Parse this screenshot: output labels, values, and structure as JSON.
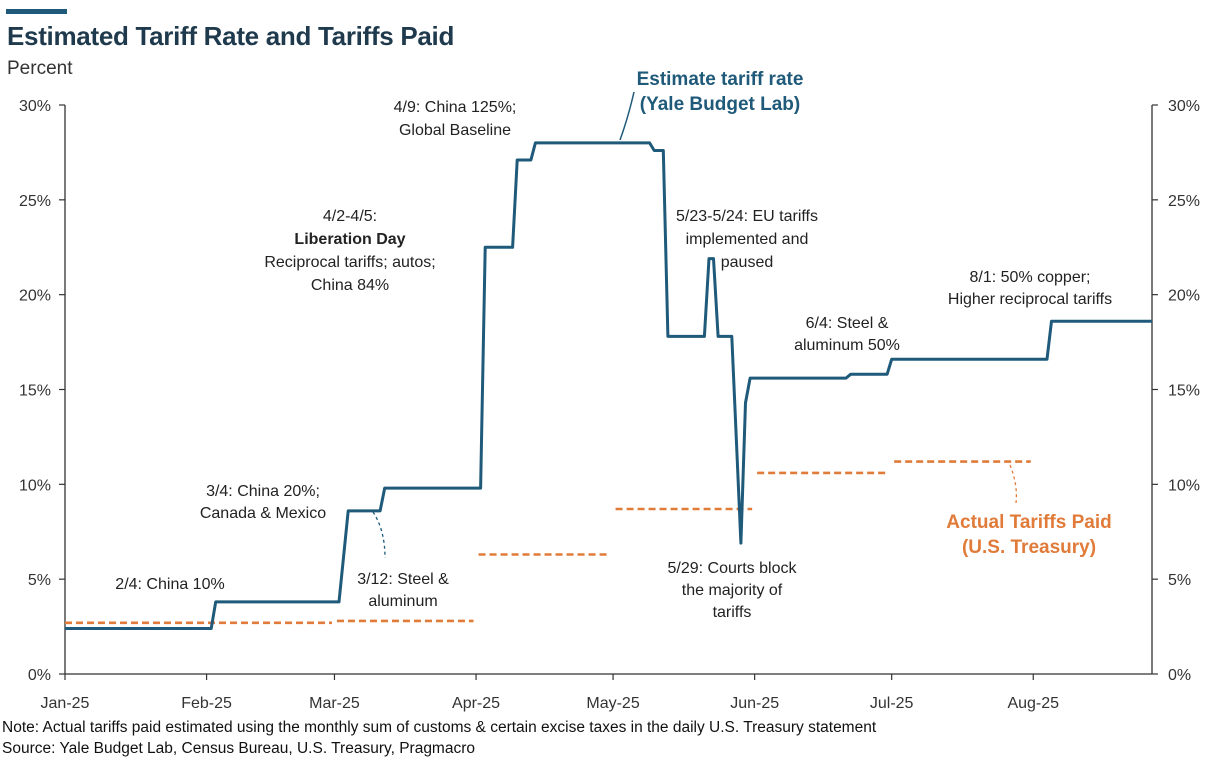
{
  "header": {
    "title": "Estimated Tariff Rate and Tariffs Paid",
    "subtitle": "Percent"
  },
  "footer": {
    "note": "Note: Actual tariffs paid estimated using the monthly sum of customs & certain excise taxes in the daily U.S. Treasury statement",
    "source": "Source: Yale Budget Lab, Census Bureau, U.S. Treasury, Pragmacro"
  },
  "colors": {
    "estimate": "#1f5a7a",
    "actual": "#e07b39",
    "axis": "#333333"
  },
  "chart_data": {
    "type": "line",
    "title": "Estimated Tariff Rate and Tariffs Paid",
    "ylabel": "Percent",
    "ylim": [
      0,
      30
    ],
    "xlim": [
      0,
      238
    ],
    "y_ticks": [
      0,
      5,
      10,
      15,
      20,
      25,
      30
    ],
    "y_tick_labels": [
      "0%",
      "5%",
      "10%",
      "15%",
      "20%",
      "25%",
      "30%"
    ],
    "x_ticks": [
      {
        "day": 0,
        "label": "Jan-25"
      },
      {
        "day": 31,
        "label": "Feb-25"
      },
      {
        "day": 59,
        "label": "Mar-25"
      },
      {
        "day": 90,
        "label": "Apr-25"
      },
      {
        "day": 120,
        "label": "May-25"
      },
      {
        "day": 151,
        "label": "Jun-25"
      },
      {
        "day": 181,
        "label": "Jul-25"
      },
      {
        "day": 212,
        "label": "Aug-25"
      }
    ],
    "series": [
      {
        "name": "Estimate tariff rate (Yale Budget Lab)",
        "style": "solid",
        "points": [
          [
            0,
            2.4
          ],
          [
            32,
            2.4
          ],
          [
            33,
            3.8
          ],
          [
            60,
            3.8
          ],
          [
            62,
            8.6
          ],
          [
            69,
            8.6
          ],
          [
            70,
            9.8
          ],
          [
            91,
            9.8
          ],
          [
            92,
            22.5
          ],
          [
            98,
            22.5
          ],
          [
            99,
            27.1
          ],
          [
            102,
            27.1
          ],
          [
            103,
            28.0
          ],
          [
            128,
            28.0
          ],
          [
            129,
            27.6
          ],
          [
            131,
            27.6
          ],
          [
            132,
            17.8
          ],
          [
            140,
            17.8
          ],
          [
            141,
            21.9
          ],
          [
            142,
            21.9
          ],
          [
            143,
            17.8
          ],
          [
            146,
            17.8
          ],
          [
            148,
            6.9
          ],
          [
            149,
            14.3
          ],
          [
            150,
            15.6
          ],
          [
            171,
            15.6
          ],
          [
            172,
            15.8
          ],
          [
            180,
            15.8
          ],
          [
            181,
            16.6
          ],
          [
            215,
            16.6
          ],
          [
            216,
            18.6
          ],
          [
            238,
            18.6
          ]
        ]
      },
      {
        "name": "Actual Tariffs Paid (U.S. Treasury)",
        "style": "dashed",
        "segments": [
          {
            "start": 0,
            "end": 59,
            "value": 2.7
          },
          {
            "start": 59,
            "end": 90,
            "value": 2.8
          },
          {
            "start": 90,
            "end": 120,
            "value": 6.3
          },
          {
            "start": 120,
            "end": 151,
            "value": 8.7
          },
          {
            "start": 151,
            "end": 181,
            "value": 10.6
          },
          {
            "start": 181,
            "end": 212,
            "value": 11.2
          }
        ]
      }
    ],
    "annotations": [
      {
        "id": "ann-china-10",
        "lines": [
          "2/4: China 10%"
        ]
      },
      {
        "id": "ann-china-20",
        "lines": [
          "3/4: China 20%;",
          "Canada & Mexico"
        ]
      },
      {
        "id": "ann-steel-aluminum",
        "lines": [
          "3/12: Steel &",
          "aluminum"
        ]
      },
      {
        "id": "ann-liberation-day",
        "lines": [
          "4/2-4/5:",
          "Liberation Day",
          "Reciprocal tariffs; autos;",
          "China 84%"
        ]
      },
      {
        "id": "ann-china-125",
        "lines": [
          "4/9: China 125%;",
          "Global Baseline"
        ]
      },
      {
        "id": "ann-eu-tariffs",
        "lines": [
          "5/23-5/24: EU tariffs",
          "implemented and",
          "paused"
        ]
      },
      {
        "id": "ann-courts-block",
        "lines": [
          "5/29: Courts block",
          "the majority of",
          "tariffs"
        ]
      },
      {
        "id": "ann-steel-50",
        "lines": [
          "6/4: Steel &",
          "aluminum 50%"
        ]
      },
      {
        "id": "ann-copper",
        "lines": [
          "8/1: 50% copper;",
          "Higher reciprocal tariffs"
        ]
      },
      {
        "id": "legend-estimate",
        "lines": [
          "Estimate tariff rate",
          "(Yale Budget Lab)"
        ]
      },
      {
        "id": "legend-actual",
        "lines": [
          "Actual Tariffs Paid",
          "(U.S. Treasury)"
        ]
      }
    ]
  }
}
